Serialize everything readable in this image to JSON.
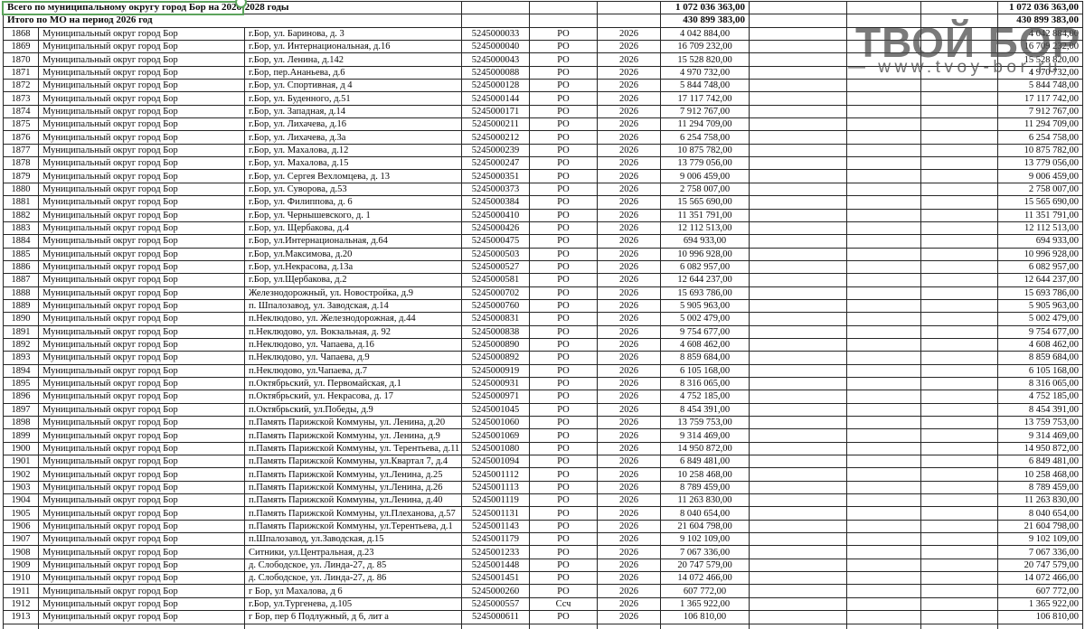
{
  "watermark": {
    "title": "ТВОЙ БОР",
    "url": "— www.tvoy-bor.ru"
  },
  "table": {
    "municipality_all": "Муниципальный округ город Бор",
    "year_all": "2026",
    "summary_rows": [
      {
        "label": "Всего по муниципальному округу город Бор на 2026-2028 годы",
        "amount": "1 072 036 363,00"
      },
      {
        "label": "Итого по МО на период 2026 год",
        "amount": "430 899 383,00"
      }
    ],
    "rows": [
      {
        "n": "1868",
        "addr": "г.Бор,  ул. Баринова,  д. 3",
        "code": "5245000033",
        "type": "РО",
        "amt": "4 042 884,00"
      },
      {
        "n": "1869",
        "addr": "г.Бор,  ул. Интернациональная, д.16",
        "code": "5245000040",
        "type": "РО",
        "amt": "16 709 232,00"
      },
      {
        "n": "1870",
        "addr": "г.Бор,  ул. Ленина, д.142",
        "code": "5245000043",
        "type": "РО",
        "amt": "15 528 820,00"
      },
      {
        "n": "1871",
        "addr": "г.Бор, пер.Ананьева, д.6",
        "code": "5245000088",
        "type": "РО",
        "amt": "4 970 732,00"
      },
      {
        "n": "1872",
        "addr": "г.Бор, ул.  Спортивная, д 4",
        "code": "5245000128",
        "type": "РО",
        "amt": "5 844 748,00"
      },
      {
        "n": "1873",
        "addr": "г.Бор, ул. Буденного, д.51",
        "code": "5245000144",
        "type": "РО",
        "amt": "17 117 742,00"
      },
      {
        "n": "1874",
        "addr": "г.Бор, ул. Западная, д.14",
        "code": "5245000171",
        "type": "РО",
        "amt": "7 912 767,00"
      },
      {
        "n": "1875",
        "addr": "г.Бор, ул. Лихачева,  д.16",
        "code": "5245000211",
        "type": "РО",
        "amt": "11 294 709,00"
      },
      {
        "n": "1876",
        "addr": "г.Бор, ул. Лихачева,  д.3а",
        "code": "5245000212",
        "type": "РО",
        "amt": "6 254 758,00"
      },
      {
        "n": "1877",
        "addr": "г.Бор, ул. Махалова,  д.12",
        "code": "5245000239",
        "type": "РО",
        "amt": "10 875 782,00"
      },
      {
        "n": "1878",
        "addr": "г.Бор, ул. Махалова, д.15",
        "code": "5245000247",
        "type": "РО",
        "amt": "13 779 056,00"
      },
      {
        "n": "1879",
        "addr": "г.Бор, ул. Сергея Вехломцева, д. 13",
        "code": "5245000351",
        "type": "РО",
        "amt": "9 006 459,00"
      },
      {
        "n": "1880",
        "addr": "г.Бор, ул. Суворова, д.53",
        "code": "5245000373",
        "type": "РО",
        "amt": "2 758 007,00"
      },
      {
        "n": "1881",
        "addr": "г.Бор, ул. Филиппова, д. 6",
        "code": "5245000384",
        "type": "РО",
        "amt": "15 565 690,00"
      },
      {
        "n": "1882",
        "addr": "г.Бор, ул. Чернышевского, д. 1",
        "code": "5245000410",
        "type": "РО",
        "amt": "11 351 791,00"
      },
      {
        "n": "1883",
        "addr": "г.Бор, ул. Щербакова, д.4",
        "code": "5245000426",
        "type": "РО",
        "amt": "12 112 513,00"
      },
      {
        "n": "1884",
        "addr": "г.Бор, ул.Интернациональная, д.64",
        "code": "5245000475",
        "type": "РО",
        "amt": "694 933,00"
      },
      {
        "n": "1885",
        "addr": "г.Бор, ул.Максимова, д.20",
        "code": "5245000503",
        "type": "РО",
        "amt": "10 996 928,00"
      },
      {
        "n": "1886",
        "addr": "г.Бор, ул.Некрасова, д.13а",
        "code": "5245000527",
        "type": "РО",
        "amt": "6 082 957,00"
      },
      {
        "n": "1887",
        "addr": "г.Бор, ул.Щербакова, д.2",
        "code": "5245000581",
        "type": "РО",
        "amt": "12 644 237,00"
      },
      {
        "n": "1888",
        "addr": "Железнодорожный, ул. Новостройка, д.9",
        "code": "5245000702",
        "type": "РО",
        "amt": "15 693 786,00"
      },
      {
        "n": "1889",
        "addr": "п. Шпалозавод, ул. Заводская, д.14",
        "code": "5245000760",
        "type": "РО",
        "amt": "5 905 963,00"
      },
      {
        "n": "1890",
        "addr": "п.Неклюдово, ул.  Железнодорожная, д.44",
        "code": "5245000831",
        "type": "РО",
        "amt": "5 002 479,00"
      },
      {
        "n": "1891",
        "addr": "п.Неклюдово, ул. Вокзальная, д. 92",
        "code": "5245000838",
        "type": "РО",
        "amt": "9 754 677,00"
      },
      {
        "n": "1892",
        "addr": "п.Неклюдово, ул. Чапаева, д.16",
        "code": "5245000890",
        "type": "РО",
        "amt": "4 608 462,00"
      },
      {
        "n": "1893",
        "addr": "п.Неклюдово, ул. Чапаева, д.9",
        "code": "5245000892",
        "type": "РО",
        "amt": "8 859 684,00"
      },
      {
        "n": "1894",
        "addr": "п.Неклюдово, ул.Чапаева,  д.7",
        "code": "5245000919",
        "type": "РО",
        "amt": "6 105 168,00"
      },
      {
        "n": "1895",
        "addr": "п.Октябрьский,  ул. Первомайская, д.1",
        "code": "5245000931",
        "type": "РО",
        "amt": "8 316 065,00"
      },
      {
        "n": "1896",
        "addr": "п.Октябрьский, ул. Некрасова, д. 17",
        "code": "5245000971",
        "type": "РО",
        "amt": "4 752 185,00"
      },
      {
        "n": "1897",
        "addr": "п.Октябрьский, ул.Победы, д.9",
        "code": "5245001045",
        "type": "РО",
        "amt": "8 454 391,00"
      },
      {
        "n": "1898",
        "addr": "п.Память Парижской Коммуны, ул. Ленина, д.20",
        "code": "5245001060",
        "type": "РО",
        "amt": "13 759 753,00"
      },
      {
        "n": "1899",
        "addr": "п.Память Парижской Коммуны, ул. Ленина, д.9",
        "code": "5245001069",
        "type": "РО",
        "amt": "9 314 469,00"
      },
      {
        "n": "1900",
        "addr": "п.Память Парижской Коммуны, ул. Терентьева, д.11",
        "code": "5245001080",
        "type": "РО",
        "amt": "14 950 872,00"
      },
      {
        "n": "1901",
        "addr": "п.Память Парижской Коммуны, ул.Квартал 7, д.4",
        "code": "5245001094",
        "type": "РО",
        "amt": "6 849 481,00"
      },
      {
        "n": "1902",
        "addr": "п.Память Парижской Коммуны, ул.Ленина, д.25",
        "code": "5245001112",
        "type": "РО",
        "amt": "10 258 468,00"
      },
      {
        "n": "1903",
        "addr": "п.Память Парижской Коммуны, ул.Ленина, д.26",
        "code": "5245001113",
        "type": "РО",
        "amt": "8 789 459,00"
      },
      {
        "n": "1904",
        "addr": "п.Память Парижской Коммуны, ул.Ленина, д.40",
        "code": "5245001119",
        "type": "РО",
        "amt": "11 263 830,00"
      },
      {
        "n": "1905",
        "addr": "п.Память Парижской Коммуны, ул.Плеханова, д.57",
        "code": "5245001131",
        "type": "РО",
        "amt": "8 040 654,00"
      },
      {
        "n": "1906",
        "addr": "п.Память Парижской Коммуны, ул.Терентьева, д.1",
        "code": "5245001143",
        "type": "РО",
        "amt": "21 604 798,00"
      },
      {
        "n": "1907",
        "addr": "п.Шпалозавод, ул.Заводская, д.15",
        "code": "5245001179",
        "type": "РО",
        "amt": "9 102 109,00"
      },
      {
        "n": "1908",
        "addr": "Ситники, ул.Центральная, д.23",
        "code": "5245001233",
        "type": "РО",
        "amt": "7 067 336,00"
      },
      {
        "n": "1909",
        "addr": "д. Слободское, ул. Линда-27, д. 85",
        "code": "5245001448",
        "type": "РО",
        "amt": "20 747 579,00"
      },
      {
        "n": "1910",
        "addr": "д. Слободское, ул. Линда-27, д. 86",
        "code": "5245001451",
        "type": "РО",
        "amt": "14 072 466,00"
      },
      {
        "n": "1911",
        "addr": "г Бор, ул Махалова, д 6",
        "code": "5245000260",
        "type": "РО",
        "amt": "607 772,00"
      },
      {
        "n": "1912",
        "addr": "г.Бор, ул.Тургенева, д.105",
        "code": "5245000557",
        "type": "Ссч",
        "amt": "1 365 922,00"
      },
      {
        "n": "1913",
        "addr": "г Бор, пер 6 Подлужный, д 6, лит а",
        "code": "5245000611",
        "type": "РО",
        "amt": "106 810,00"
      }
    ]
  }
}
